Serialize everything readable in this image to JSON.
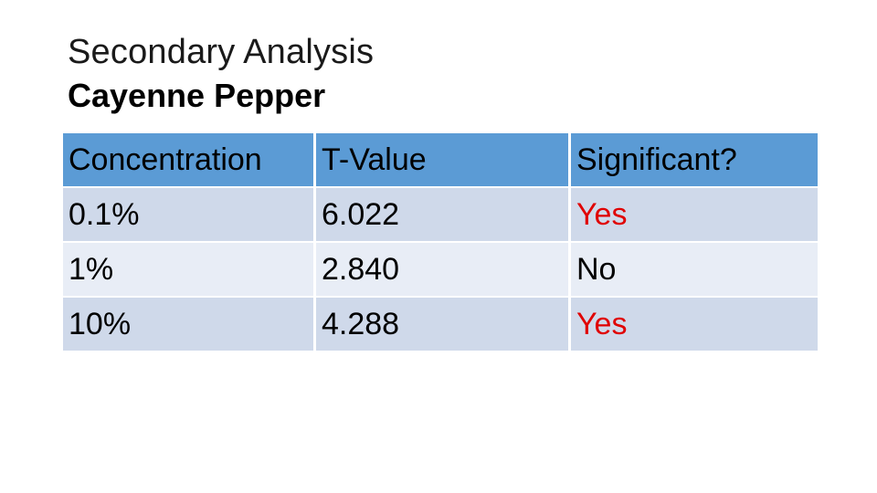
{
  "slide": {
    "title": "Secondary Analysis",
    "subtitle": "Cayenne Pepper"
  },
  "table": {
    "headers": [
      "Concentration",
      "T-Value",
      "Significant?"
    ],
    "rows": [
      {
        "concentration": "0.1%",
        "t_value": "6.022",
        "significant": "Yes"
      },
      {
        "concentration": "1%",
        "t_value": "2.840",
        "significant": "No"
      },
      {
        "concentration": "10%",
        "t_value": "4.288",
        "significant": "Yes"
      }
    ]
  },
  "colors": {
    "header_bg": "#5b9bd5",
    "row_dark_bg": "#cfd9ea",
    "row_light_bg": "#e8edf6",
    "significant_yes": "#e00000"
  }
}
